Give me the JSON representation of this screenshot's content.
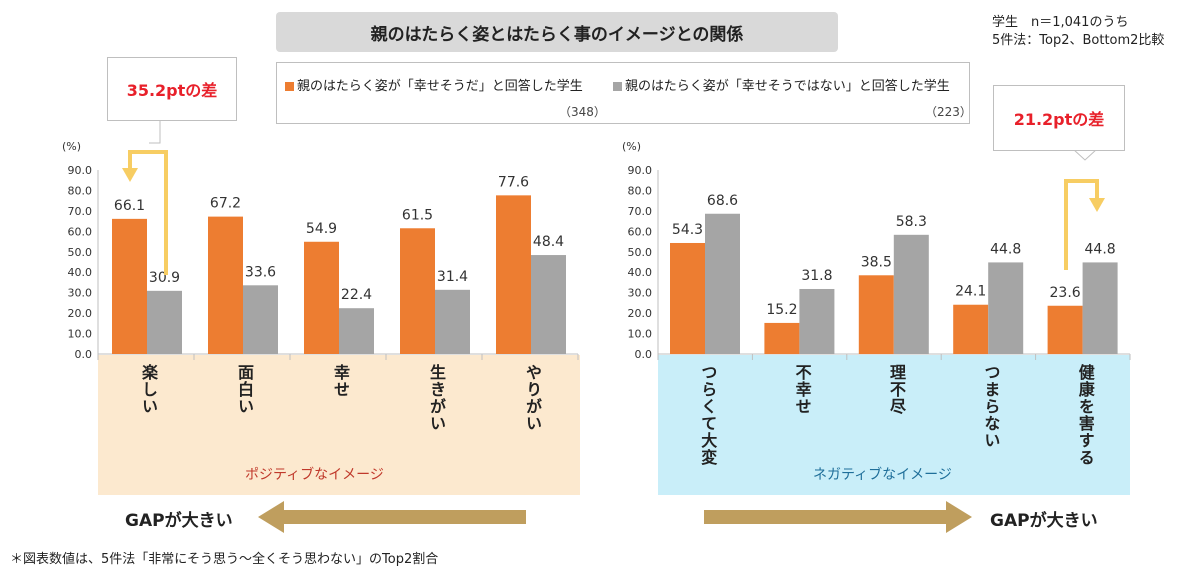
{
  "header": {
    "title": "親のはたらく姿とはたらく事のイメージとの関係",
    "sample_line1": "学生　n＝1,041のうち",
    "sample_line2": "5件法：Top2、Bottom2比較"
  },
  "legend": {
    "happy_label": "親のはたらく姿が「幸せそうだ」と回答した学生",
    "happy_n": "（348）",
    "unhappy_label": "親のはたらく姿が「幸せそうではない」と回答した学生",
    "unhappy_n": "（223）"
  },
  "callouts": {
    "left": "35.2ptの差",
    "right": "21.2ptの差"
  },
  "panels": {
    "left_caption": "ポジティブなイメージ",
    "right_caption": "ネガティブなイメージ",
    "gap_left": "GAPが大きい",
    "gap_right": "GAPが大きい"
  },
  "footnote": "＊図表数値は、5件法「非常にそう思う～全くそう思わない」のTop2割合",
  "colors": {
    "happy": "#ed7d31",
    "unhappy": "#a5a5a5",
    "positive_bg": "#fce9cf",
    "negative_bg": "#c9eef9",
    "arrow": "#bf9e5e",
    "callout_line": "#f7cd63",
    "callout_text": "#e8202a"
  },
  "chart_data": [
    {
      "type": "bar",
      "ylabel": "(%)",
      "ylim": [
        0,
        90
      ],
      "yticks": [
        "90.0",
        "80.0",
        "70.0",
        "60.0",
        "50.0",
        "40.0",
        "30.0",
        "20.0",
        "10.0",
        "0.0"
      ],
      "categories": [
        "楽しい",
        "面白い",
        "幸せ",
        "生きがい",
        "やりがい"
      ],
      "series": [
        {
          "name": "親のはたらく姿が「幸せそうだ」と回答した学生",
          "values": [
            66.1,
            67.2,
            54.9,
            61.5,
            77.6
          ]
        },
        {
          "name": "親のはたらく姿が「幸せそうではない」と回答した学生",
          "values": [
            30.9,
            33.6,
            22.4,
            31.4,
            48.4
          ]
        }
      ]
    },
    {
      "type": "bar",
      "ylabel": "(%)",
      "ylim": [
        0,
        90
      ],
      "yticks": [
        "90.0",
        "80.0",
        "70.0",
        "60.0",
        "50.0",
        "40.0",
        "30.0",
        "20.0",
        "10.0",
        "0.0"
      ],
      "categories": [
        "つらくて大変",
        "不幸せ",
        "理不尽",
        "つまらない",
        "健康を害する"
      ],
      "series": [
        {
          "name": "親のはたらく姿が「幸せそうだ」と回答した学生",
          "values": [
            54.3,
            15.2,
            38.5,
            24.1,
            23.6
          ]
        },
        {
          "name": "親のはたらく姿が「幸せそうではない」と回答した学生",
          "values": [
            68.6,
            31.8,
            58.3,
            44.8,
            44.8
          ]
        }
      ]
    }
  ]
}
